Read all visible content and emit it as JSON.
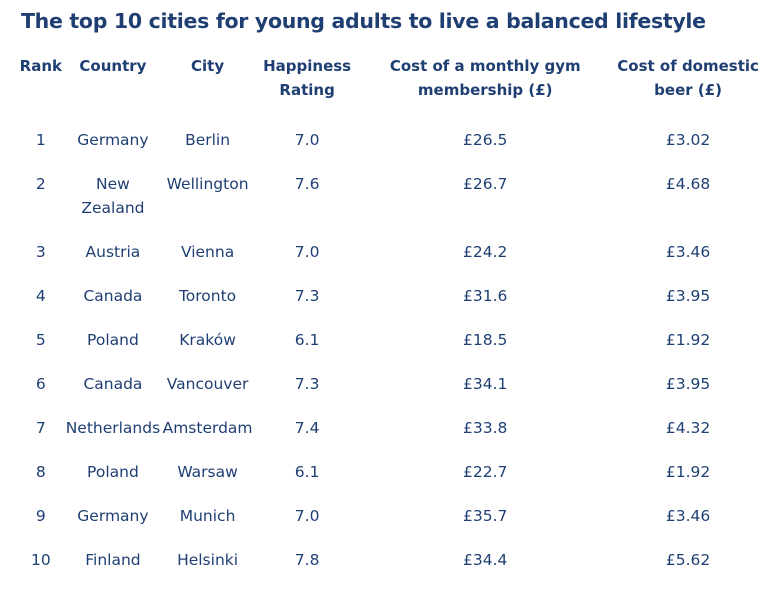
{
  "title": "The top 10 cities for young adults to live a balanced lifestyle",
  "chart_data": {
    "type": "table",
    "title": "The top 10 cities for young adults to live a balanced lifestyle",
    "columns": [
      "Rank",
      "Country",
      "City",
      "Happiness Rating",
      "Cost of a monthly gym membership (£)",
      "Cost of domestic beer (£)"
    ],
    "rows": [
      [
        "1",
        "Germany",
        "Berlin",
        "7.0",
        "£26.5",
        "£3.02"
      ],
      [
        "2",
        "New Zealand",
        "Wellington",
        "7.6",
        "£26.7",
        "£4.68"
      ],
      [
        "3",
        "Austria",
        "Vienna",
        "7.0",
        "£24.2",
        "£3.46"
      ],
      [
        "4",
        "Canada",
        "Toronto",
        "7.3",
        "£31.6",
        "£3.95"
      ],
      [
        "5",
        "Poland",
        "Kraków",
        "6.1",
        "£18.5",
        "£1.92"
      ],
      [
        "6",
        "Canada",
        "Vancouver",
        "7.3",
        "£34.1",
        "£3.95"
      ],
      [
        "7",
        "Netherlands",
        "Amsterdam",
        "7.4",
        "£33.8",
        "£4.32"
      ],
      [
        "8",
        "Poland",
        "Warsaw",
        "6.1",
        "£22.7",
        "£1.92"
      ],
      [
        "9",
        "Germany",
        "Munich",
        "7.0",
        "£35.7",
        "£3.46"
      ],
      [
        "10",
        "Finland",
        "Helsinki",
        "7.8",
        "£34.4",
        "£5.62"
      ]
    ]
  }
}
